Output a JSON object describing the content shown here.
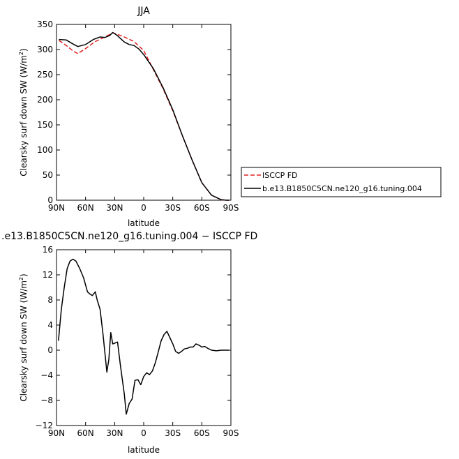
{
  "chart_data": [
    {
      "type": "line",
      "title": "JJA",
      "xlabel": "latitude",
      "ylabel": "Clearsky surf down SW (W/m",
      "ylabel_sup": "2",
      "ylabel_tail": ")",
      "xlim": [
        90,
        -90
      ],
      "ylim": [
        0,
        350
      ],
      "xticks": [
        {
          "value": 90,
          "label": "90N"
        },
        {
          "value": 60,
          "label": "60N"
        },
        {
          "value": 30,
          "label": "30N"
        },
        {
          "value": 0,
          "label": "0"
        },
        {
          "value": -30,
          "label": "30S"
        },
        {
          "value": -60,
          "label": "60S"
        },
        {
          "value": -90,
          "label": "90S"
        }
      ],
      "yticks": [
        0,
        50,
        100,
        150,
        200,
        250,
        300,
        350
      ],
      "legend_placement": "right",
      "series": [
        {
          "name": "ISCCP FD",
          "color": "#e02020",
          "dash": true,
          "x": [
            87.5,
            80,
            72,
            68,
            60,
            50,
            40,
            35,
            32,
            28,
            20,
            10,
            0,
            -10,
            -20,
            -30,
            -40,
            -50,
            -60,
            -70,
            -80,
            -85,
            -88
          ],
          "y": [
            318,
            308,
            296,
            292,
            302,
            316,
            325,
            330,
            333,
            331,
            325,
            316,
            298,
            260,
            222,
            178,
            128,
            80,
            35,
            10,
            1,
            0,
            0
          ]
        },
        {
          "name": "b.e13.B1850C5CN.ne120_g16.tuning.004",
          "color": "#000000",
          "dash": false,
          "x": [
            87.5,
            80,
            72,
            68,
            60,
            52,
            45,
            40,
            35,
            32,
            28,
            20,
            15,
            10,
            5,
            0,
            -10,
            -20,
            -30,
            -40,
            -50,
            -60,
            -70,
            -80,
            -85,
            -88
          ],
          "y": [
            320,
            319,
            310,
            306,
            310,
            320,
            325,
            324,
            328,
            334,
            329,
            315,
            310,
            308,
            301,
            290,
            262,
            224,
            180,
            128,
            80,
            35,
            10,
            1,
            0,
            0
          ]
        }
      ]
    },
    {
      "type": "line",
      "title": ".e13.B1850C5CN.ne120_g16.tuning.004 − ISCCP FD",
      "xlabel": "latitude",
      "ylabel": "Clearsky surf down SW (W/m",
      "ylabel_sup": "2",
      "ylabel_tail": ")",
      "xlim": [
        90,
        -90
      ],
      "ylim": [
        -12,
        16
      ],
      "xticks": [
        {
          "value": 90,
          "label": "90N"
        },
        {
          "value": 60,
          "label": "60N"
        },
        {
          "value": 30,
          "label": "30N"
        },
        {
          "value": 0,
          "label": "0"
        },
        {
          "value": -30,
          "label": "30S"
        },
        {
          "value": -60,
          "label": "60S"
        },
        {
          "value": -90,
          "label": "90S"
        }
      ],
      "yticks": [
        -12,
        -8,
        -4,
        0,
        4,
        8,
        12,
        16
      ],
      "series": [
        {
          "name": "",
          "color": "#000000",
          "dash": false,
          "x": [
            88,
            85,
            82,
            79,
            76,
            73,
            70,
            66,
            62,
            58,
            56,
            53,
            50,
            48,
            45,
            42,
            38,
            36,
            34,
            32,
            27,
            24,
            20,
            18,
            15,
            12,
            9,
            6,
            3,
            0,
            -3,
            -6,
            -9,
            -12,
            -15,
            -18,
            -21,
            -24,
            -27,
            -30,
            -33,
            -36,
            -39,
            -42,
            -45,
            -48,
            -51,
            -54,
            -57,
            -60,
            -63,
            -66,
            -70,
            -75,
            -80,
            -85,
            -88
          ],
          "y": [
            1.5,
            6.5,
            10,
            13,
            14.2,
            14.5,
            14.2,
            13,
            11.5,
            9.3,
            9,
            8.7,
            9.3,
            8,
            6.5,
            2.5,
            -3.5,
            -1.5,
            2.8,
            1,
            1.3,
            -2.5,
            -7,
            -10.2,
            -8.5,
            -7.8,
            -4.8,
            -4.7,
            -5.5,
            -4.2,
            -3.6,
            -3.9,
            -3.3,
            -2,
            -0.3,
            1.5,
            2.5,
            3,
            2,
            1,
            -0.2,
            -0.5,
            -0.2,
            0.2,
            0.3,
            0.5,
            0.5,
            1,
            0.8,
            0.5,
            0.6,
            0.3,
            0,
            -0.1,
            0,
            0,
            0
          ]
        }
      ]
    }
  ]
}
